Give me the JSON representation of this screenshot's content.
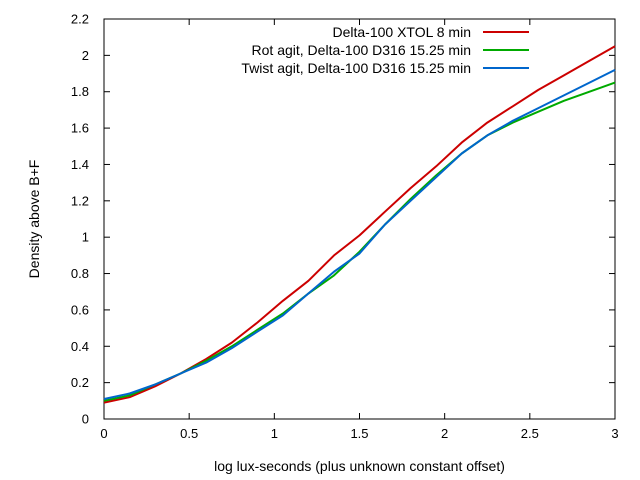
{
  "chart_data": {
    "type": "line",
    "xlabel": "log lux-seconds (plus unknown constant offset)",
    "ylabel": "Density above B+F",
    "xlim": [
      0,
      3
    ],
    "ylim": [
      0,
      2.2
    ],
    "xticks": [
      0,
      0.5,
      1,
      1.5,
      2,
      2.5,
      3
    ],
    "xtick_labels": [
      "0",
      "0.5",
      "1",
      "1.5",
      "2",
      "2.5",
      "3"
    ],
    "yticks": [
      0,
      0.2,
      0.4,
      0.6,
      0.8,
      1,
      1.2,
      1.4,
      1.6,
      1.8,
      2,
      2.2
    ],
    "ytick_labels": [
      "0",
      "0.2",
      "0.4",
      "0.6",
      "0.8",
      "1",
      "1.2",
      "1.4",
      "1.6",
      "1.8",
      "2",
      "2.2"
    ],
    "grid": false,
    "legend_position": "top-right",
    "series": [
      {
        "name": "Delta-100 XTOL 8 min",
        "color": "#cc0000",
        "x": [
          0,
          0.15,
          0.3,
          0.45,
          0.6,
          0.75,
          0.9,
          1.05,
          1.2,
          1.35,
          1.5,
          1.65,
          1.8,
          1.95,
          2.1,
          2.25,
          2.4,
          2.55,
          2.7,
          2.85,
          3.0
        ],
        "y": [
          0.09,
          0.12,
          0.18,
          0.25,
          0.33,
          0.42,
          0.53,
          0.65,
          0.76,
          0.9,
          1.01,
          1.14,
          1.27,
          1.39,
          1.52,
          1.63,
          1.72,
          1.81,
          1.89,
          1.97,
          2.05
        ]
      },
      {
        "name": "Rot agit, Delta-100 D316 15.25 min",
        "color": "#00aa00",
        "x": [
          0,
          0.15,
          0.3,
          0.45,
          0.6,
          0.75,
          0.9,
          1.05,
          1.2,
          1.35,
          1.5,
          1.65,
          1.8,
          1.95,
          2.1,
          2.25,
          2.4,
          2.55,
          2.7,
          2.85,
          3.0
        ],
        "y": [
          0.1,
          0.13,
          0.19,
          0.25,
          0.32,
          0.4,
          0.49,
          0.58,
          0.69,
          0.79,
          0.92,
          1.07,
          1.21,
          1.34,
          1.46,
          1.56,
          1.63,
          1.69,
          1.75,
          1.8,
          1.85
        ]
      },
      {
        "name": "Twist agit, Delta-100 D316 15.25 min",
        "color": "#0066cc",
        "x": [
          0,
          0.15,
          0.3,
          0.45,
          0.6,
          0.75,
          0.9,
          1.05,
          1.2,
          1.35,
          1.5,
          1.65,
          1.8,
          1.95,
          2.1,
          2.25,
          2.4,
          2.55,
          2.7,
          2.85,
          3.0
        ],
        "y": [
          0.11,
          0.14,
          0.19,
          0.25,
          0.31,
          0.39,
          0.48,
          0.57,
          0.69,
          0.81,
          0.91,
          1.07,
          1.2,
          1.33,
          1.46,
          1.56,
          1.64,
          1.71,
          1.78,
          1.85,
          1.92
        ]
      }
    ]
  }
}
